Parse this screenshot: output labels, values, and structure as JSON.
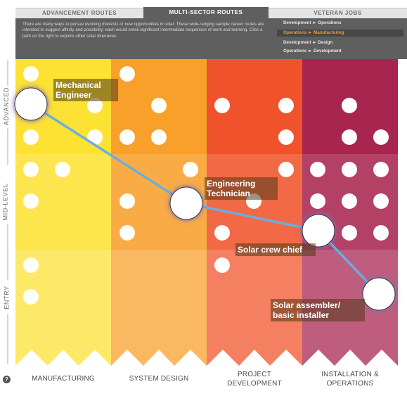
{
  "tabs": [
    {
      "label": "ADVANCEMENT ROUTES",
      "active": false
    },
    {
      "label": "MULTI-SECTOR ROUTES",
      "active": true
    },
    {
      "label": "VETERAN JOBS",
      "active": false
    }
  ],
  "header": {
    "description": "There are many ways to pursue evolving interests or new opportunities in solar. These wide-ranging sample career routes are intended to suggest affinity and possibility; each would entail significant intermediate sequences of work and learning. Click a path on the right to explore other solar itineraries.",
    "routes": [
      {
        "label": "Development ► Operations",
        "selected": false
      },
      {
        "label": "Operations ► Manufacturing",
        "selected": true
      },
      {
        "label": "Development ► Design",
        "selected": false
      },
      {
        "label": "Operations ► Development",
        "selected": false
      }
    ]
  },
  "levels": [
    "ADVANCED",
    "MID-LEVEL",
    "ENTRY"
  ],
  "columns": [
    {
      "label": "MANUFACTURING",
      "color": "#fde234"
    },
    {
      "label": "SYSTEM DESIGN",
      "color": "#f9a02b"
    },
    {
      "label": "PROJECT DEVELOPMENT",
      "color": "#f0532b"
    },
    {
      "label": "INSTALLATION & OPERATIONS",
      "color": "#a82550"
    }
  ],
  "path_nodes": [
    {
      "label": "Mechanical Engineer"
    },
    {
      "label": "Engineering Technician"
    },
    {
      "label": "Solar crew chief"
    },
    {
      "label": "Solar assembler/ basic installer"
    }
  ],
  "colors": {
    "path_line": "#6aaee0",
    "header_bg": "#5f5f5f",
    "route_selected_text": "#f59a39"
  },
  "icons": {
    "help": "question-circle-icon"
  }
}
